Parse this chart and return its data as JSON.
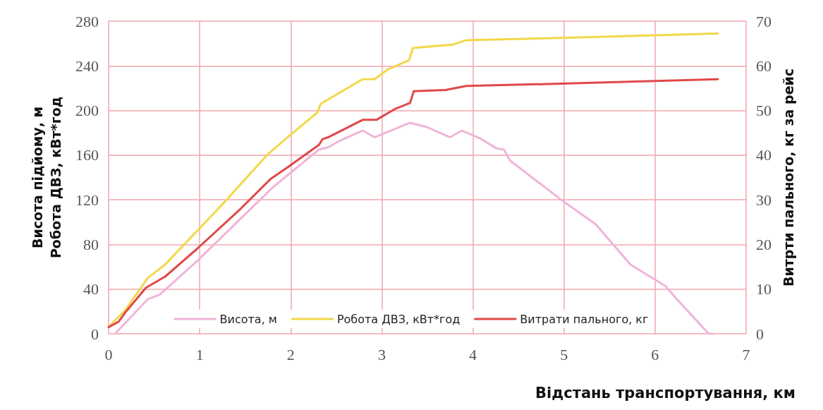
{
  "chart_data": {
    "type": "line",
    "xlabel": "Відстань транспортування, км",
    "ylabel": "Висота підйому, м\nРобота ДВЗ, кВт*год",
    "y2label": "Витрти пального, кг за рейс",
    "xlim": [
      0,
      7
    ],
    "xticks": [
      0,
      1,
      2,
      3,
      4,
      5,
      6,
      7
    ],
    "ylim": [
      0,
      280
    ],
    "yticks": [
      0,
      40,
      80,
      120,
      160,
      200,
      240,
      280
    ],
    "y2lim": [
      0,
      70
    ],
    "y2ticks": [
      0,
      10,
      20,
      30,
      40,
      50,
      60,
      70
    ],
    "grid": true,
    "legend": "bottom",
    "marker": "none",
    "line_style": "solid",
    "series": [
      {
        "name": "Висота, м",
        "color": "#f0b4d8",
        "x": [
          0.07,
          0.43,
          0.56,
          0.97,
          1.7,
          1.8,
          1.98,
          2.31,
          2.41,
          2.54,
          2.79,
          2.92,
          3.31,
          3.5,
          3.75,
          3.88,
          4.08,
          4.26,
          4.34,
          4.41,
          4.97,
          5.35,
          5.73,
          6.11,
          6.24,
          6.59,
          6.64
        ],
        "values": [
          0,
          31,
          35,
          65,
          123,
          131,
          143,
          165,
          167,
          173,
          182,
          176,
          189,
          185,
          176,
          182,
          175,
          166,
          165,
          155,
          120,
          98,
          62,
          43,
          31,
          0,
          0
        ]
      },
      {
        "name": "Робота ДВЗ, кВт*год",
        "color": "#f2d84a",
        "x": [
          0,
          0.18,
          0.43,
          0.62,
          0.97,
          1.25,
          1.75,
          1.98,
          2.29,
          2.33,
          2.79,
          2.92,
          3.07,
          3.3,
          3.34,
          3.78,
          3.93,
          4.97,
          6.69
        ],
        "values": [
          6,
          21,
          50,
          62,
          92,
          116,
          161,
          177,
          198,
          206,
          228,
          228,
          237,
          245,
          256,
          259,
          263,
          265,
          269
        ]
      },
      {
        "name": "Витрати пального, кг",
        "color": "#e04848",
        "axis": "y2",
        "x": [
          0,
          0.11,
          0.18,
          0.41,
          0.62,
          0.97,
          1.45,
          1.78,
          1.98,
          2.31,
          2.35,
          2.41,
          2.79,
          2.94,
          3.15,
          3.31,
          3.35,
          3.7,
          3.93,
          4.97,
          6.69
        ],
        "values": [
          1.5,
          2.7,
          4.7,
          10.3,
          12.8,
          19,
          28,
          34.7,
          37.5,
          42.3,
          43.6,
          44,
          47.9,
          47.9,
          50.4,
          51.7,
          54.3,
          54.6,
          55.5,
          56,
          57
        ]
      }
    ]
  }
}
